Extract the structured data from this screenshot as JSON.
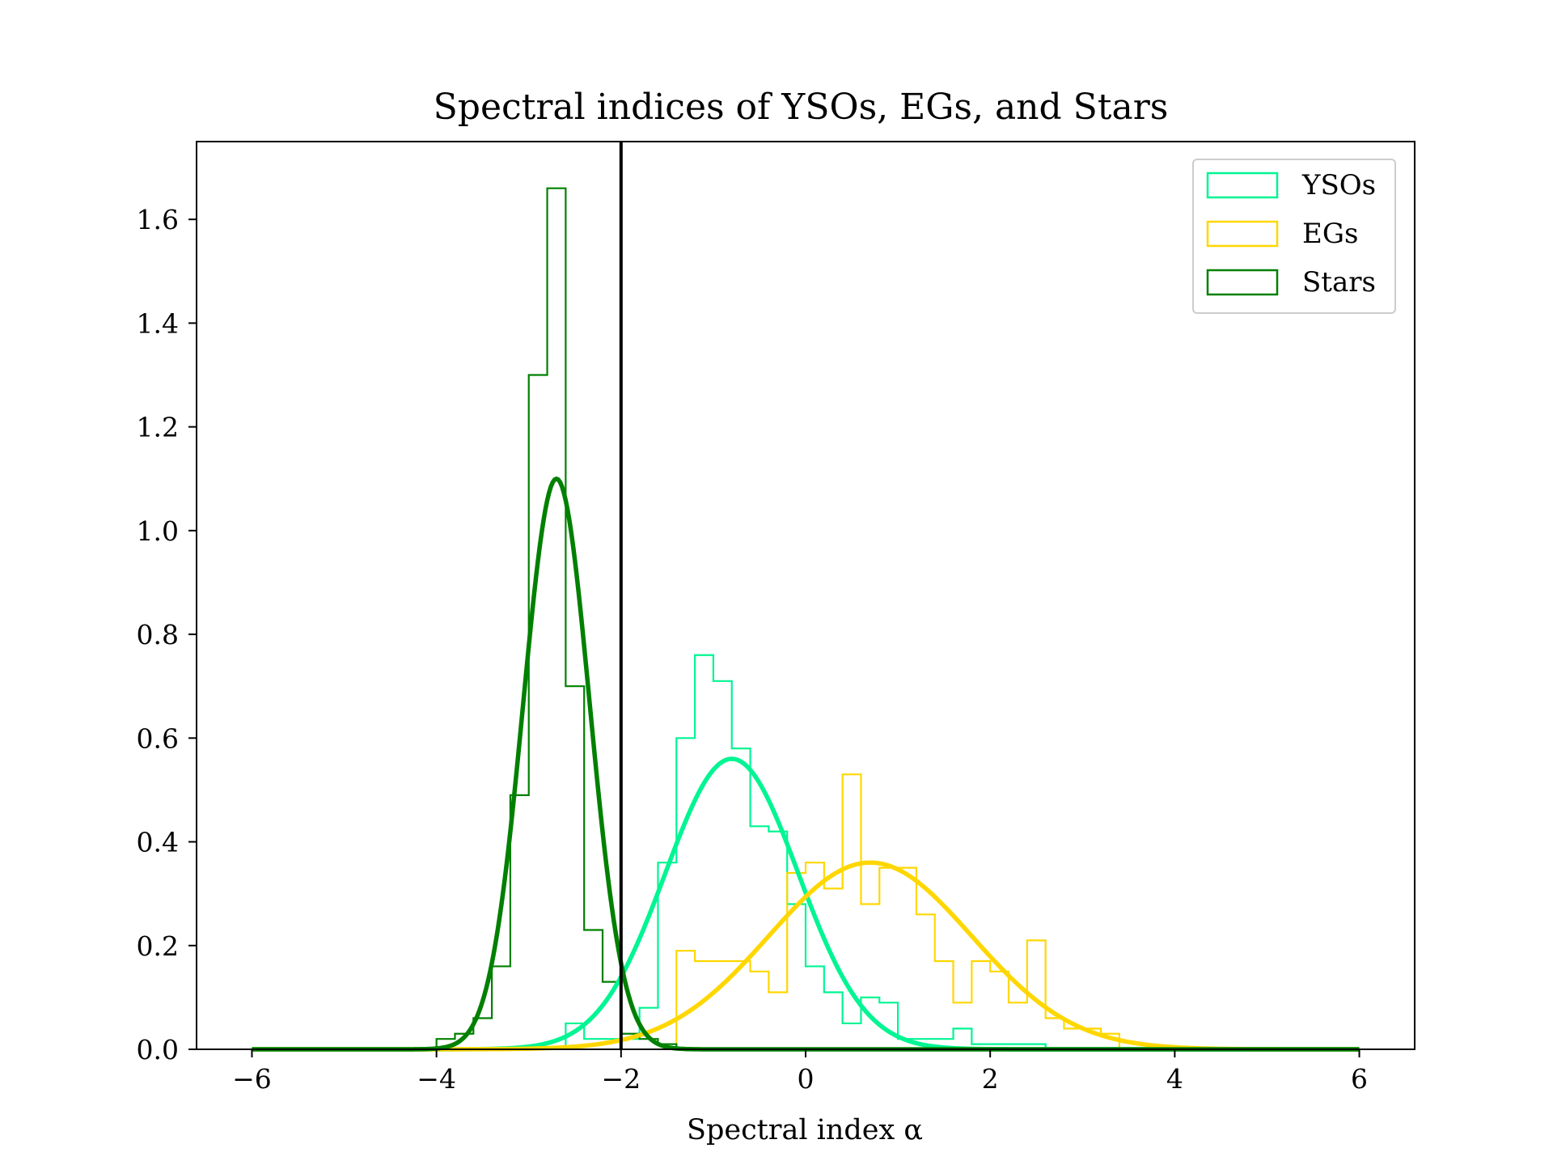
{
  "chart_data": {
    "type": "histogram",
    "title": "Spectral indices of YSOs, EGs, and Stars",
    "xlabel": "Spectral index α",
    "ylabel": "",
    "xlim": [
      -6.6,
      6.6
    ],
    "ylim": [
      0,
      1.75
    ],
    "x_ticks": [
      -6,
      -4,
      -2,
      0,
      2,
      4,
      6
    ],
    "x_tick_labels": [
      "−6",
      "−4",
      "−2",
      "0",
      "2",
      "4",
      "6"
    ],
    "y_ticks": [
      0.0,
      0.2,
      0.4,
      0.6,
      0.8,
      1.0,
      1.2,
      1.4,
      1.6
    ],
    "y_tick_labels": [
      "0.0",
      "0.2",
      "0.4",
      "0.6",
      "0.8",
      "1.0",
      "1.2",
      "1.4",
      "1.6"
    ],
    "grid": false,
    "legend_position": "top-right",
    "threshold_line": {
      "x": -2,
      "color": "#000000"
    },
    "series": [
      {
        "name": "YSOs",
        "color": "#00f593",
        "hist_edges": [
          -2.6,
          -2.4,
          -2.2,
          -2.0,
          -1.8,
          -1.6,
          -1.4,
          -1.2,
          -1.0,
          -0.8,
          -0.6,
          -0.4,
          -0.2,
          0.0,
          0.2,
          0.4,
          0.6,
          0.8,
          1.0,
          1.2,
          1.4,
          1.6,
          1.8,
          2.0,
          2.2,
          2.4,
          2.6
        ],
        "hist_values": [
          0.05,
          0.02,
          0.02,
          0.02,
          0.08,
          0.36,
          0.6,
          0.76,
          0.71,
          0.58,
          0.43,
          0.42,
          0.28,
          0.16,
          0.11,
          0.05,
          0.1,
          0.09,
          0.02,
          0.02,
          0.02,
          0.04,
          0.01,
          0.01,
          0.01,
          0.01
        ],
        "fit": {
          "mu": -0.8,
          "sigma": 0.72,
          "peak": 0.56
        }
      },
      {
        "name": "EGs",
        "color": "#ffd700",
        "hist_edges": [
          -1.4,
          -1.2,
          -1.0,
          -0.8,
          -0.6,
          -0.4,
          -0.2,
          0.0,
          0.2,
          0.4,
          0.6,
          0.8,
          1.0,
          1.2,
          1.4,
          1.6,
          1.8,
          2.0,
          2.2,
          2.4,
          2.6,
          2.8,
          3.0,
          3.2,
          3.4
        ],
        "hist_values": [
          0.19,
          0.17,
          0.17,
          0.17,
          0.15,
          0.11,
          0.34,
          0.36,
          0.31,
          0.53,
          0.28,
          0.35,
          0.35,
          0.26,
          0.17,
          0.09,
          0.17,
          0.15,
          0.09,
          0.21,
          0.06,
          0.04,
          0.04,
          0.03
        ],
        "fit": {
          "mu": 0.7,
          "sigma": 1.1,
          "peak": 0.36
        }
      },
      {
        "name": "Stars",
        "color": "#008000",
        "hist_edges": [
          -4.0,
          -3.8,
          -3.6,
          -3.4,
          -3.2,
          -3.0,
          -2.8,
          -2.6,
          -2.4,
          -2.2,
          -2.0,
          -1.8,
          -1.6,
          -1.4
        ],
        "hist_values": [
          0.02,
          0.03,
          0.06,
          0.16,
          0.49,
          1.3,
          1.66,
          0.7,
          0.23,
          0.13,
          0.03,
          0.02,
          0.01
        ],
        "fit": {
          "mu": -2.7,
          "sigma": 0.36,
          "peak": 1.1
        }
      }
    ]
  }
}
